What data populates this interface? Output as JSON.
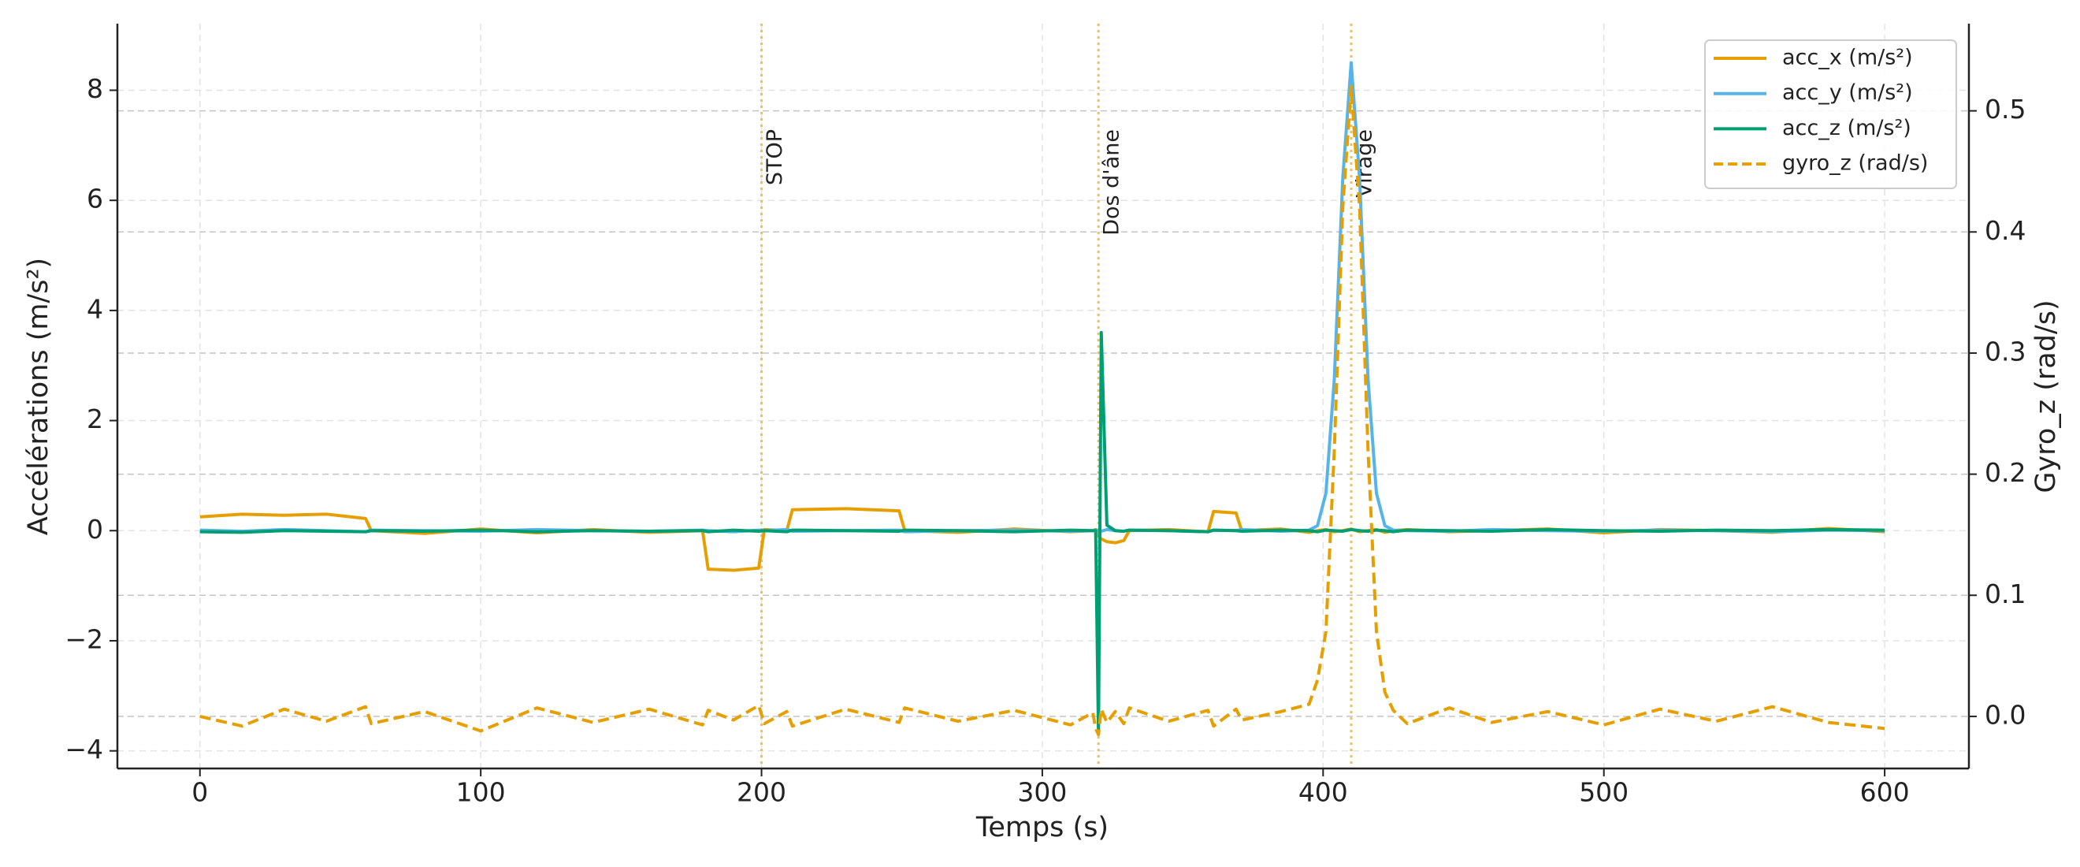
{
  "chart_data": {
    "type": "line",
    "xlabel": "Temps (s)",
    "ylabel": "Accélérations (m/s²)",
    "y2label": "Gyro_z (rad/s)",
    "x": [
      0,
      15,
      30,
      45,
      59,
      61,
      80,
      100,
      120,
      140,
      160,
      179,
      181,
      190,
      199,
      201,
      209,
      211,
      230,
      249,
      251,
      270,
      290,
      310,
      318,
      319,
      320,
      321,
      323,
      326,
      329,
      331,
      345,
      359,
      361,
      369,
      371,
      385,
      395,
      398,
      401,
      404,
      407,
      410,
      413,
      416,
      419,
      422,
      425,
      430,
      445,
      460,
      480,
      500,
      520,
      540,
      560,
      580,
      600
    ],
    "series": [
      {
        "name": "acc_x (m/s²)",
        "color": "#E69F00",
        "style": "solid",
        "values": [
          0.25,
          0.3,
          0.28,
          0.3,
          0.22,
          0.0,
          -0.05,
          0.03,
          -0.04,
          0.02,
          -0.03,
          0.0,
          -0.7,
          -0.72,
          -0.68,
          0.02,
          0.0,
          0.38,
          0.4,
          0.36,
          0.0,
          -0.03,
          0.03,
          -0.02,
          0.0,
          0.02,
          -0.1,
          -0.15,
          -0.2,
          -0.22,
          -0.18,
          0.0,
          0.02,
          -0.02,
          0.35,
          0.32,
          0.0,
          0.03,
          -0.03,
          0.0,
          0.02,
          -0.02,
          0.0,
          0.03,
          -0.02,
          0.0,
          0.02,
          -0.03,
          0.0,
          0.02,
          -0.02,
          0.0,
          0.03,
          -0.04,
          0.02,
          0.0,
          -0.03,
          0.04,
          -0.02
        ]
      },
      {
        "name": "acc_y (m/s²)",
        "color": "#56B4E9",
        "style": "solid",
        "values": [
          0.01,
          -0.01,
          0.02,
          0.0,
          -0.02,
          0.01,
          0.0,
          -0.01,
          0.02,
          0.0,
          -0.01,
          0.01,
          0.0,
          -0.02,
          0.01,
          0.0,
          0.02,
          -0.01,
          0.0,
          0.01,
          -0.02,
          0.0,
          0.01,
          -0.01,
          0.0,
          0.01,
          0.0,
          -0.01,
          0.02,
          0.0,
          -0.01,
          0.01,
          0.0,
          -0.02,
          0.01,
          0.0,
          0.02,
          -0.01,
          0.01,
          0.09,
          0.68,
          2.76,
          6.4,
          8.5,
          6.4,
          2.76,
          0.68,
          0.09,
          0.01,
          0.0,
          -0.01,
          0.02,
          0.0,
          -0.01,
          0.01,
          0.0,
          -0.02,
          0.01,
          0.0
        ]
      },
      {
        "name": "acc_z (m/s²)",
        "color": "#009E73",
        "style": "solid",
        "values": [
          -0.02,
          -0.03,
          0.0,
          -0.01,
          -0.02,
          0.0,
          -0.01,
          0.01,
          -0.02,
          0.0,
          -0.01,
          0.0,
          -0.02,
          0.01,
          -0.01,
          0.0,
          -0.02,
          0.01,
          0.0,
          -0.01,
          0.01,
          0.0,
          -0.02,
          0.01,
          0.0,
          0.0,
          -3.7,
          3.6,
          0.1,
          0.0,
          -0.01,
          0.01,
          0.0,
          -0.02,
          0.01,
          0.0,
          -0.01,
          0.01,
          0.0,
          -0.02,
          0.01,
          0.0,
          -0.01,
          0.02,
          0.0,
          -0.01,
          0.01,
          0.0,
          -0.02,
          0.01,
          0.0,
          -0.01,
          0.02,
          0.0,
          -0.01,
          0.01,
          0.0,
          0.02,
          0.01
        ]
      },
      {
        "name": "gyro_z (rad/s)",
        "color": "#E69F00",
        "style": "dashed",
        "axis": "y2",
        "values": [
          0.0,
          -0.008,
          0.006,
          -0.004,
          0.008,
          -0.006,
          0.004,
          -0.012,
          0.007,
          -0.005,
          0.006,
          -0.007,
          0.005,
          -0.003,
          0.009,
          -0.006,
          0.004,
          -0.008,
          0.006,
          -0.005,
          0.007,
          -0.004,
          0.005,
          -0.007,
          0.003,
          -0.01,
          -0.015,
          0.006,
          -0.005,
          0.004,
          -0.006,
          0.007,
          -0.004,
          0.005,
          -0.008,
          0.006,
          -0.003,
          0.004,
          0.01,
          0.03,
          0.07,
          0.22,
          0.42,
          0.52,
          0.42,
          0.22,
          0.07,
          0.02,
          0.005,
          -0.006,
          0.007,
          -0.005,
          0.004,
          -0.007,
          0.006,
          -0.004,
          0.008,
          -0.005,
          -0.01
        ]
      }
    ],
    "annotations": [
      {
        "x": 200,
        "label": "STOP"
      },
      {
        "x": 320,
        "label": "Dos d'âne"
      },
      {
        "x": 410,
        "label": "Virage"
      }
    ],
    "annotation_color": "#F2BE5A",
    "xlim": [
      -29.4,
      630
    ],
    "xticks": [
      0,
      100,
      200,
      300,
      400,
      500,
      600
    ],
    "ylim": [
      -4.32,
      9.21
    ],
    "yticks": [
      {
        "value": -4,
        "label": "−4"
      },
      {
        "value": -2,
        "label": "−2"
      },
      0,
      2,
      4,
      6,
      8
    ],
    "y2lim": [
      -0.043,
      0.572
    ],
    "y2ticks": [
      {
        "value": 0,
        "label": "0.0"
      },
      0.1,
      0.2,
      0.3,
      0.4,
      0.5
    ],
    "grid": true,
    "legend": "upper right"
  }
}
